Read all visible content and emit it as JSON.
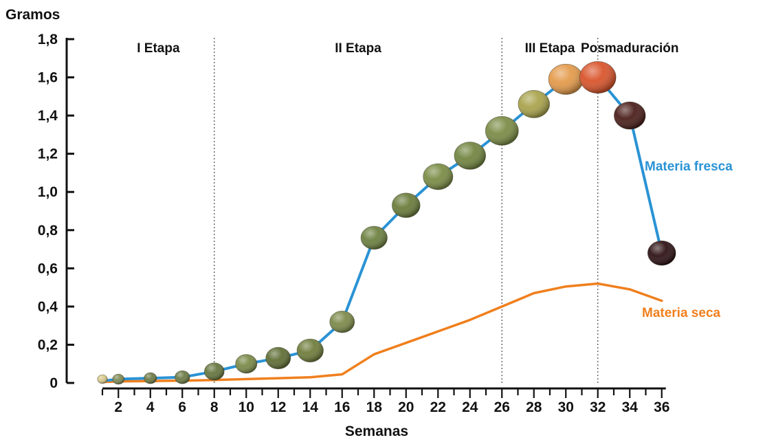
{
  "chart_data": {
    "type": "line",
    "ylabel": "Gramos",
    "xlabel": "Semanas",
    "ylim": [
      0,
      1.8
    ],
    "xlim": [
      1,
      36
    ],
    "yticks": [
      "0",
      "0,2",
      "0,4",
      "0,6",
      "0,8",
      "1,0",
      "1,2",
      "1,4",
      "1,6",
      "1,8"
    ],
    "xticks": [
      "2",
      "4",
      "6",
      "8",
      "10",
      "12",
      "14",
      "16",
      "18",
      "20",
      "22",
      "24",
      "26",
      "28",
      "30",
      "32",
      "34",
      "36"
    ],
    "stage_boundaries": [
      8,
      26,
      32
    ],
    "stages": [
      {
        "label": "I Etapa",
        "x": 4.5
      },
      {
        "label": "II Etapa",
        "x": 17
      },
      {
        "label": "III Etapa",
        "x": 29
      },
      {
        "label": "Posmaduración",
        "x": 34
      }
    ],
    "series": [
      {
        "name": "Materia fresca",
        "color": "#2a93d5",
        "x": [
          1,
          2,
          4,
          6,
          8,
          10,
          12,
          14,
          16,
          18,
          20,
          22,
          24,
          26,
          28,
          30,
          32,
          34,
          36
        ],
        "values": [
          0.01,
          0.02,
          0.025,
          0.03,
          0.06,
          0.1,
          0.13,
          0.17,
          0.32,
          0.76,
          0.93,
          1.08,
          1.19,
          1.32,
          1.46,
          1.59,
          1.6,
          1.4,
          0.68
        ]
      },
      {
        "name": "Materia seca",
        "color": "#f07f1d",
        "x": [
          1,
          2,
          4,
          6,
          8,
          10,
          12,
          14,
          16,
          18,
          20,
          22,
          24,
          26,
          28,
          30,
          32,
          34,
          36
        ],
        "values": [
          0.005,
          0.008,
          0.01,
          0.012,
          0.015,
          0.02,
          0.025,
          0.03,
          0.045,
          0.15,
          0.21,
          0.27,
          0.33,
          0.4,
          0.47,
          0.505,
          0.52,
          0.49,
          0.43
        ]
      }
    ],
    "fruits": [
      {
        "x": 1,
        "y": 0.02,
        "size": 0.3,
        "color": "#d9c98a"
      },
      {
        "x": 2,
        "y": 0.02,
        "size": 0.35,
        "color": "#7f8a55"
      },
      {
        "x": 4,
        "y": 0.025,
        "size": 0.38,
        "color": "#6e7a45"
      },
      {
        "x": 6,
        "y": 0.03,
        "size": 0.45,
        "color": "#6b7a44"
      },
      {
        "x": 8,
        "y": 0.06,
        "size": 0.6,
        "color": "#66763f"
      },
      {
        "x": 10,
        "y": 0.1,
        "size": 0.65,
        "color": "#7a8a48"
      },
      {
        "x": 12,
        "y": 0.13,
        "size": 0.75,
        "color": "#5f6e35"
      },
      {
        "x": 14,
        "y": 0.17,
        "size": 0.8,
        "color": "#6f7d3c"
      },
      {
        "x": 16,
        "y": 0.32,
        "size": 0.75,
        "color": "#7c8a4a"
      },
      {
        "x": 18,
        "y": 0.76,
        "size": 0.8,
        "color": "#6d8040"
      },
      {
        "x": 20,
        "y": 0.93,
        "size": 0.85,
        "color": "#6a7c3b"
      },
      {
        "x": 22,
        "y": 1.08,
        "size": 0.9,
        "color": "#7a8c45"
      },
      {
        "x": 24,
        "y": 1.19,
        "size": 0.95,
        "color": "#728540"
      },
      {
        "x": 26,
        "y": 1.32,
        "size": 1.0,
        "color": "#7b8c46"
      },
      {
        "x": 28,
        "y": 1.46,
        "size": 0.95,
        "color": "#a9a34c"
      },
      {
        "x": 30,
        "y": 1.59,
        "size": 1.05,
        "color": "#e39a4a"
      },
      {
        "x": 32,
        "y": 1.6,
        "size": 1.1,
        "color": "#d9542b"
      },
      {
        "x": 34,
        "y": 1.4,
        "size": 0.95,
        "color": "#4b1f1a"
      },
      {
        "x": 36,
        "y": 0.68,
        "size": 0.85,
        "color": "#2e1215"
      }
    ]
  }
}
